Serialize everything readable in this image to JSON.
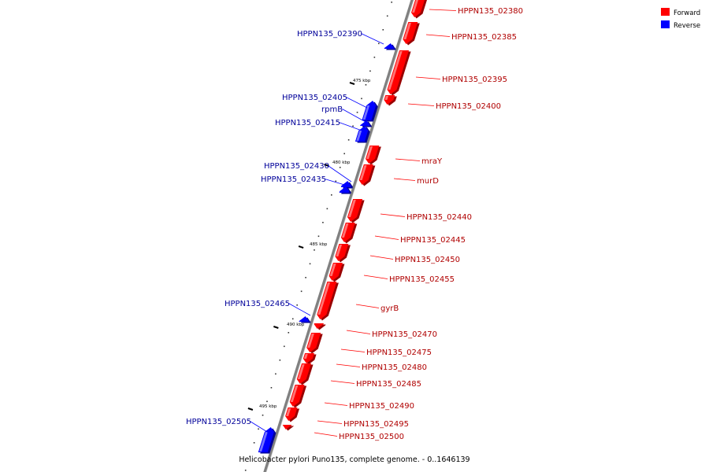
{
  "caption": "Helicobacter pylori Puno135, complete genome. - 0..1646139",
  "legend": [
    {
      "label": "Forward",
      "color": "#ff0000"
    },
    {
      "label": "Reverse",
      "color": "#0000ff"
    }
  ],
  "colors": {
    "forward": "#ff0000",
    "reverse": "#0000ff",
    "backbone": "#808080"
  },
  "ticks": [
    {
      "label": "475 kbp"
    },
    {
      "label": "480 kbp"
    },
    {
      "label": "485 kbp"
    },
    {
      "label": "490 kbp"
    },
    {
      "label": "495 kbp"
    }
  ],
  "genes": [
    {
      "label": "HPPN135_02380",
      "strand": "forward"
    },
    {
      "label": "HPPN135_02385",
      "strand": "forward"
    },
    {
      "label": "HPPN135_02390",
      "strand": "reverse"
    },
    {
      "label": "HPPN135_02395",
      "strand": "forward"
    },
    {
      "label": "HPPN135_02400",
      "strand": "forward"
    },
    {
      "label": "HPPN135_02405",
      "strand": "reverse"
    },
    {
      "label": "rpmB",
      "strand": "reverse"
    },
    {
      "label": "HPPN135_02415",
      "strand": "reverse"
    },
    {
      "label": "mraY",
      "strand": "forward"
    },
    {
      "label": "murD",
      "strand": "forward"
    },
    {
      "label": "HPPN135_02430",
      "strand": "reverse"
    },
    {
      "label": "HPPN135_02435",
      "strand": "reverse"
    },
    {
      "label": "HPPN135_02440",
      "strand": "forward"
    },
    {
      "label": "HPPN135_02445",
      "strand": "forward"
    },
    {
      "label": "HPPN135_02450",
      "strand": "forward"
    },
    {
      "label": "HPPN135_02455",
      "strand": "forward"
    },
    {
      "label": "gyrB",
      "strand": "forward"
    },
    {
      "label": "HPPN135_02465",
      "strand": "reverse"
    },
    {
      "label": "HPPN135_02470",
      "strand": "forward"
    },
    {
      "label": "HPPN135_02475",
      "strand": "forward"
    },
    {
      "label": "HPPN135_02480",
      "strand": "forward"
    },
    {
      "label": "HPPN135_02485",
      "strand": "forward"
    },
    {
      "label": "HPPN135_02490",
      "strand": "forward"
    },
    {
      "label": "HPPN135_02495",
      "strand": "forward"
    },
    {
      "label": "HPPN135_02500",
      "strand": "forward"
    },
    {
      "label": "HPPN135_02505",
      "strand": "reverse"
    }
  ]
}
